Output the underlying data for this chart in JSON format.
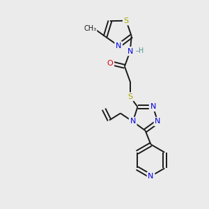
{
  "bg_color": "#ebebeb",
  "bond_color": "#1a1a1a",
  "atom_colors": {
    "N": "#0000dd",
    "S": "#aaaa00",
    "O": "#dd0000",
    "C": "#1a1a1a",
    "H": "#4a9090"
  },
  "font_size": 8,
  "fig_size": [
    3.0,
    3.0
  ],
  "dpi": 100
}
